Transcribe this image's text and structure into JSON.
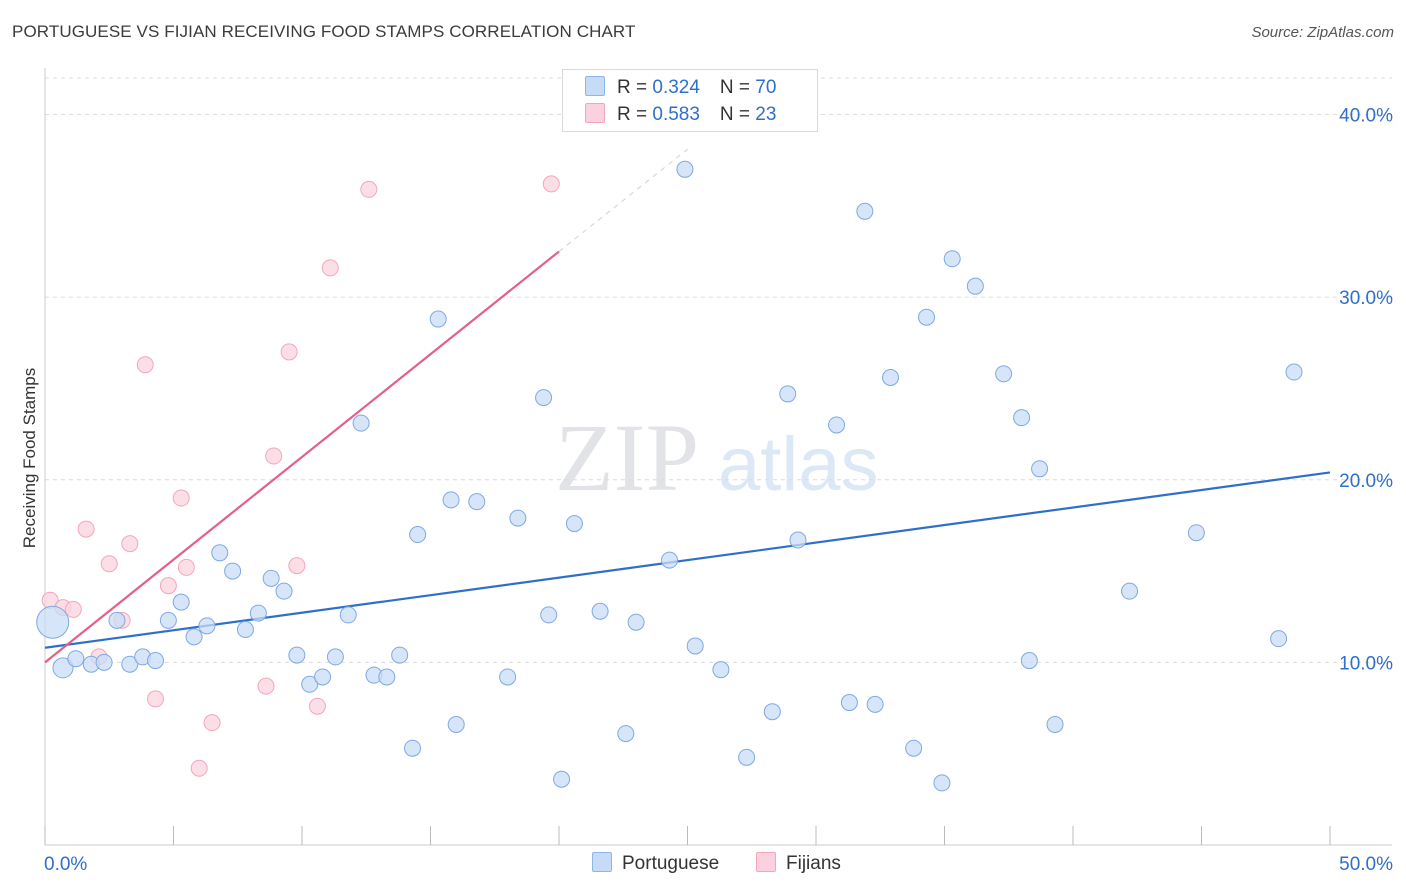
{
  "header": {
    "title": "PORTUGUESE VS FIJIAN RECEIVING FOOD STAMPS CORRELATION CHART",
    "source": "Source: ZipAtlas.com"
  },
  "watermark": {
    "zip": "ZIP",
    "atlas": "atlas"
  },
  "legend": {
    "rows": [
      {
        "r_label": "R = ",
        "r_value": "0.324",
        "n_label": "N = ",
        "n_value": "70"
      },
      {
        "r_label": "R = ",
        "r_value": "0.583",
        "n_label": "N = ",
        "n_value": "23"
      }
    ]
  },
  "bottom_legend": [
    "Portuguese",
    "Fijians"
  ],
  "chart_data": {
    "type": "scatter",
    "title": "PORTUGUESE VS FIJIAN RECEIVING FOOD STAMPS CORRELATION CHART",
    "xlabel": "",
    "ylabel": "Receiving Food Stamps",
    "xlim": [
      0,
      50
    ],
    "ylim": [
      0,
      42
    ],
    "x_tick_labels": [
      "0.0%",
      "50.0%"
    ],
    "y_ticks": [
      10,
      20,
      30,
      40
    ],
    "y_tick_labels": [
      "10.0%",
      "20.0%",
      "30.0%",
      "40.0%"
    ],
    "grid": true,
    "legend_position": "top-center",
    "colors": {
      "portuguese": "#6fa3e6",
      "portuguese_line": "#2f6fcc",
      "fijians": "#f09ab5",
      "fijians_line": "#e4608a",
      "tick_label": "#2f6fcc"
    },
    "series": [
      {
        "name": "Portuguese",
        "r": 0.324,
        "n": 70,
        "trend": {
          "x": [
            0,
            50
          ],
          "y": [
            10.8,
            20.4
          ]
        },
        "points": [
          [
            0.3,
            12.2
          ],
          [
            0.7,
            9.7
          ],
          [
            1.2,
            10.2
          ],
          [
            1.8,
            9.9
          ],
          [
            2.3,
            10.0
          ],
          [
            2.8,
            12.3
          ],
          [
            3.3,
            9.9
          ],
          [
            3.8,
            10.3
          ],
          [
            4.3,
            10.1
          ],
          [
            4.8,
            12.3
          ],
          [
            5.3,
            13.3
          ],
          [
            5.8,
            11.4
          ],
          [
            6.3,
            12.0
          ],
          [
            6.8,
            16.0
          ],
          [
            7.3,
            15.0
          ],
          [
            7.8,
            11.8
          ],
          [
            8.3,
            12.7
          ],
          [
            8.8,
            14.6
          ],
          [
            9.3,
            13.9
          ],
          [
            9.8,
            10.4
          ],
          [
            10.3,
            8.8
          ],
          [
            10.8,
            9.2
          ],
          [
            11.3,
            10.3
          ],
          [
            11.8,
            12.6
          ],
          [
            12.3,
            23.1
          ],
          [
            12.8,
            9.3
          ],
          [
            13.3,
            9.2
          ],
          [
            13.8,
            10.4
          ],
          [
            14.3,
            5.3
          ],
          [
            14.5,
            17.0
          ],
          [
            15.3,
            28.8
          ],
          [
            16.0,
            6.6
          ],
          [
            15.8,
            18.9
          ],
          [
            16.8,
            18.8
          ],
          [
            18.0,
            9.2
          ],
          [
            18.4,
            17.9
          ],
          [
            19.4,
            24.5
          ],
          [
            19.6,
            12.6
          ],
          [
            20.1,
            3.6
          ],
          [
            20.6,
            17.6
          ],
          [
            21.6,
            12.8
          ],
          [
            22.6,
            6.1
          ],
          [
            23.0,
            12.2
          ],
          [
            24.3,
            15.6
          ],
          [
            24.9,
            37.0
          ],
          [
            25.3,
            10.9
          ],
          [
            26.3,
            9.6
          ],
          [
            27.3,
            4.8
          ],
          [
            28.3,
            7.3
          ],
          [
            28.9,
            24.7
          ],
          [
            29.3,
            16.7
          ],
          [
            30.8,
            23.0
          ],
          [
            31.3,
            7.8
          ],
          [
            31.9,
            34.7
          ],
          [
            32.3,
            7.7
          ],
          [
            32.9,
            25.6
          ],
          [
            33.8,
            5.3
          ],
          [
            34.3,
            28.9
          ],
          [
            34.9,
            3.4
          ],
          [
            35.3,
            32.1
          ],
          [
            36.2,
            30.6
          ],
          [
            37.3,
            25.8
          ],
          [
            38.0,
            23.4
          ],
          [
            38.3,
            10.1
          ],
          [
            38.7,
            20.6
          ],
          [
            39.3,
            6.6
          ],
          [
            42.2,
            13.9
          ],
          [
            44.8,
            17.1
          ],
          [
            48.0,
            11.3
          ],
          [
            48.6,
            25.9
          ]
        ]
      },
      {
        "name": "Fijians",
        "r": 0.583,
        "n": 23,
        "trend": {
          "x": [
            0,
            20
          ],
          "y": [
            10.0,
            32.5
          ]
        },
        "trend_dashed_extension": {
          "x": [
            20,
            25
          ],
          "y": [
            32.5,
            38.1
          ]
        },
        "points": [
          [
            0.2,
            13.4
          ],
          [
            0.7,
            13.0
          ],
          [
            1.1,
            12.9
          ],
          [
            1.6,
            17.3
          ],
          [
            2.1,
            10.3
          ],
          [
            2.5,
            15.4
          ],
          [
            3.0,
            12.3
          ],
          [
            3.3,
            16.5
          ],
          [
            3.9,
            26.3
          ],
          [
            4.3,
            8.0
          ],
          [
            4.8,
            14.2
          ],
          [
            5.3,
            19.0
          ],
          [
            5.5,
            15.2
          ],
          [
            6.0,
            4.2
          ],
          [
            6.5,
            6.7
          ],
          [
            8.6,
            8.7
          ],
          [
            8.9,
            21.3
          ],
          [
            9.5,
            27.0
          ],
          [
            9.8,
            15.3
          ],
          [
            10.6,
            7.6
          ],
          [
            11.1,
            31.6
          ],
          [
            12.6,
            35.9
          ],
          [
            19.7,
            36.2
          ]
        ]
      }
    ]
  }
}
